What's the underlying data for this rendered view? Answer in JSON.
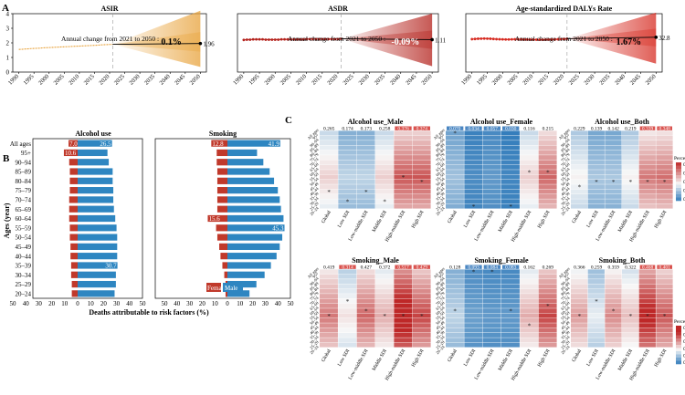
{
  "chart_data": [
    {
      "panel": "A",
      "type": "line",
      "title": "ASIR",
      "x": [
        1990,
        1991,
        1992,
        1993,
        1994,
        1995,
        1996,
        1997,
        1998,
        1999,
        2000,
        2001,
        2002,
        2003,
        2004,
        2005,
        2006,
        2007,
        2008,
        2009,
        2010,
        2011,
        2012,
        2013,
        2014,
        2015,
        2016,
        2017,
        2018,
        2019,
        2020,
        2021
      ],
      "y": [
        1.55,
        1.56,
        1.58,
        1.59,
        1.61,
        1.62,
        1.63,
        1.64,
        1.66,
        1.67,
        1.68,
        1.69,
        1.7,
        1.71,
        1.72,
        1.73,
        1.74,
        1.75,
        1.76,
        1.77,
        1.78,
        1.79,
        1.8,
        1.81,
        1.82,
        1.83,
        1.84,
        1.86,
        1.87,
        1.88,
        1.89,
        1.9
      ],
      "projection": {
        "start": 2021,
        "end": 2050,
        "start_value": 1.9,
        "end_value": 1.96,
        "upper_end": 4.2,
        "lower_end": 0.35
      },
      "annotation": "Annual change from 2021 to 2050 :",
      "change": "0.1%",
      "end_label": "1.96",
      "ylim": [
        0,
        4
      ],
      "yticks": [
        0,
        1,
        2,
        3,
        4
      ],
      "xticks": [
        1990,
        1995,
        2000,
        2005,
        2010,
        2015,
        2020,
        2025,
        2030,
        2035,
        2040,
        2045,
        2050
      ],
      "color": "#e8a23a"
    },
    {
      "panel": "A",
      "type": "line",
      "title": "ASDR",
      "x": [
        1990,
        1991,
        1992,
        1993,
        1994,
        1995,
        1996,
        1997,
        1998,
        1999,
        2000,
        2001,
        2002,
        2003,
        2004,
        2005,
        2006,
        2007,
        2008,
        2009,
        2010,
        2011,
        2012,
        2013,
        2014,
        2015,
        2016,
        2017,
        2018,
        2019,
        2020,
        2021
      ],
      "y": [
        1.1,
        1.11,
        1.11,
        1.12,
        1.12,
        1.12,
        1.12,
        1.11,
        1.11,
        1.11,
        1.11,
        1.11,
        1.12,
        1.12,
        1.12,
        1.12,
        1.12,
        1.12,
        1.12,
        1.12,
        1.13,
        1.13,
        1.13,
        1.13,
        1.13,
        1.13,
        1.13,
        1.13,
        1.13,
        1.13,
        1.13,
        1.14
      ],
      "projection": {
        "start": 2021,
        "end": 2050,
        "start_value": 1.14,
        "end_value": 1.11,
        "upper_end": 2.0,
        "lower_end": 0.2
      },
      "annotation": "Annual change from 2021 to 2050 :",
      "change": "-0.09%",
      "end_label": "1.11",
      "ylim": [
        0,
        2
      ],
      "yticks": [],
      "xticks": [
        1990,
        1995,
        2000,
        2005,
        2010,
        2015,
        2020,
        2025,
        2030,
        2035,
        2040,
        2045,
        2050
      ],
      "color": "#b4221c"
    },
    {
      "panel": "A",
      "type": "line",
      "title": "Age-standardized DALYs Rate",
      "x": [
        1990,
        1991,
        1992,
        1993,
        1994,
        1995,
        1996,
        1997,
        1998,
        1999,
        2000,
        2001,
        2002,
        2003,
        2004,
        2005,
        2006,
        2007,
        2008,
        2009,
        2010,
        2011,
        2012,
        2013,
        2014,
        2015,
        2016,
        2017,
        2018,
        2019,
        2020,
        2021
      ],
      "y": [
        31.0,
        31.2,
        31.4,
        31.5,
        31.6,
        31.5,
        31.4,
        31.2,
        31.0,
        30.9,
        30.8,
        30.7,
        30.7,
        30.8,
        30.9,
        30.9,
        30.8,
        30.7,
        30.7,
        30.6,
        30.6,
        30.5,
        30.5,
        30.5,
        30.6,
        30.6,
        30.7,
        30.8,
        30.9,
        31.0,
        31.2,
        31.4
      ],
      "projection": {
        "start": 2021,
        "end": 2050,
        "start_value": 31.4,
        "end_value": 32.8,
        "upper_end": 56,
        "lower_end": 8
      },
      "annotation": "Annual change from 2021 to 2050 :",
      "change": "1.67%",
      "end_label": "32.8",
      "ylim": [
        0,
        55
      ],
      "yticks": [],
      "xticks": [
        1990,
        1995,
        2000,
        2005,
        2010,
        2015,
        2020,
        2025,
        2030,
        2035,
        2040,
        2045,
        2050
      ],
      "color": "#d62a20"
    },
    {
      "panel": "B",
      "type": "bar",
      "orientation": "horizontal-mirrored",
      "ylabel": "Ages (year)",
      "xlabel": "Deaths attributable to risk factors (%)",
      "categories": [
        "All ages",
        "95+",
        "90–94",
        "85–89",
        "80–84",
        "75–79",
        "70–74",
        "65–69",
        "60–64",
        "55–59",
        "50–54",
        "45–49",
        "40–44",
        "35–39",
        "30–34",
        "25–29",
        "20–24"
      ],
      "xticks_left": [
        50,
        40,
        30,
        20,
        10,
        0
      ],
      "xticks_right": [
        10,
        20,
        30,
        40,
        50
      ],
      "legend": {
        "female": "Female",
        "male": "Male"
      },
      "female_color": "#c0392b",
      "male_color": "#2e86c1",
      "panels": [
        {
          "title": "Alcohol use",
          "female": [
            7.0,
            10.6,
            6.5,
            6.0,
            6.0,
            6.0,
            6.5,
            6.5,
            6.5,
            6.0,
            6.0,
            5.5,
            5.5,
            5.0,
            5.0,
            4.5,
            4.5
          ],
          "male": [
            26.5,
            23.0,
            24.0,
            27.0,
            27.0,
            27.5,
            27.5,
            28.0,
            29.0,
            30.0,
            30.5,
            30.5,
            30.5,
            30.7,
            29.5,
            29.5,
            28.5
          ],
          "labels": [
            {
              "category": "All ages",
              "side": "female",
              "text": "7.0"
            },
            {
              "category": "All ages",
              "side": "male",
              "text": "26.5"
            },
            {
              "category": "95+",
              "side": "female",
              "text": "10.6"
            },
            {
              "category": "35–39",
              "side": "male",
              "text": "30.7"
            }
          ]
        },
        {
          "title": "Smoking",
          "female": [
            12.8,
            8.5,
            8.5,
            8.0,
            8.0,
            8.0,
            8.0,
            8.0,
            15.6,
            9.0,
            8.0,
            6.5,
            5.5,
            4.0,
            2.5,
            1.5,
            1.5
          ],
          "male": [
            41.9,
            23.5,
            28.5,
            33.5,
            37.0,
            40.0,
            41.5,
            42.5,
            44.5,
            45.3,
            43.5,
            41.5,
            39.0,
            34.5,
            29.5,
            23.0,
            17.5
          ],
          "labels": [
            {
              "category": "All ages",
              "side": "female",
              "text": "12.8"
            },
            {
              "category": "All ages",
              "side": "male",
              "text": "41.9"
            },
            {
              "category": "60–64",
              "side": "female",
              "text": "15.6"
            },
            {
              "category": "55–59",
              "side": "male",
              "text": "45.3"
            }
          ]
        }
      ]
    },
    {
      "panel": "C",
      "type": "heatmap",
      "rows": [
        "All ages",
        "95+",
        "90–94",
        "85–89",
        "80–84",
        "75–79",
        "70–74",
        "65–69",
        "60–64",
        "55–59",
        "50–54",
        "45–49",
        "40–44",
        "35–39",
        "30–34",
        "25–29",
        "20–24"
      ],
      "columns": [
        "Global",
        "Low SDI",
        "Low-middle SDI",
        "Middle SDI",
        "High-middle SDI",
        "High SDI"
      ],
      "top_title": "Alcohol use_Both",
      "legend_title": "Percent",
      "legend_top": [
        "0.5",
        "0.4",
        "0.3",
        "0.2",
        "0.1"
      ],
      "legend_bottom": [
        "0.6",
        "0.5",
        "0.4",
        "0.3",
        "0.2",
        "0.1"
      ],
      "heatmaps": [
        {
          "title": "Alcohol use_Male",
          "all_ages": [
            "0.265",
            "0.174",
            "0.173",
            "0.258",
            "0.376",
            "0.374"
          ],
          "base": [
            0.26,
            0.16,
            0.16,
            0.26,
            0.4,
            0.4
          ],
          "stars": [
            [
              13,
              0
            ],
            [
              15,
              1
            ],
            [
              13,
              2
            ],
            [
              15,
              3
            ],
            [
              10,
              4
            ],
            [
              11,
              5
            ]
          ]
        },
        {
          "title": "Alcohol use_Female",
          "all_ages": [
            "0.070",
            "0.034",
            "0.057",
            "0.030",
            "0.116",
            "0.215"
          ],
          "base": [
            0.13,
            0.05,
            0.07,
            0.04,
            0.26,
            0.38
          ],
          "stars": [
            [
              1,
              0
            ],
            [
              16,
              1
            ],
            [
              16,
              3
            ],
            [
              9,
              4
            ],
            [
              9,
              5
            ]
          ]
        },
        {
          "title": "Alcohol use_Both",
          "all_ages": [
            "0.229",
            "0.139",
            "0.142",
            "0.219",
            "0.339",
            "0.348"
          ],
          "base": [
            0.22,
            0.14,
            0.14,
            0.22,
            0.36,
            0.37
          ],
          "stars": [
            [
              12,
              0
            ],
            [
              11,
              1
            ],
            [
              11,
              2
            ],
            [
              11,
              3
            ],
            [
              11,
              4
            ],
            [
              11,
              5
            ]
          ]
        },
        {
          "title": "Smoking_Male",
          "all_ages": [
            "0.419",
            "0.314",
            "0.427",
            "0.372",
            "0.517",
            "0.429"
          ],
          "base": [
            0.36,
            0.24,
            0.38,
            0.3,
            0.52,
            0.42
          ],
          "stars": [
            [
              10,
              0
            ],
            [
              7,
              1
            ],
            [
              9,
              2
            ],
            [
              10,
              3
            ],
            [
              10,
              4
            ],
            [
              10,
              5
            ]
          ]
        },
        {
          "title": "Smoking_Female",
          "all_ages": [
            "0.128",
            "0.093",
            "0.084",
            "0.083",
            "0.162",
            "0.269"
          ],
          "base": [
            0.16,
            0.08,
            0.07,
            0.07,
            0.3,
            0.42
          ],
          "stars": [
            [
              9,
              0
            ],
            [
              1,
              1
            ],
            [
              1,
              2
            ],
            [
              9,
              3
            ],
            [
              12,
              4
            ],
            [
              8,
              5
            ]
          ]
        },
        {
          "title": "Smoking_Both",
          "all_ages": [
            "0.366",
            "0.259",
            "0.359",
            "0.322",
            "0.468",
            "0.401"
          ],
          "base": [
            0.32,
            0.2,
            0.34,
            0.28,
            0.48,
            0.4
          ],
          "stars": [
            [
              10,
              0
            ],
            [
              7,
              1
            ],
            [
              9,
              2
            ],
            [
              10,
              3
            ],
            [
              10,
              4
            ],
            [
              10,
              5
            ]
          ]
        }
      ]
    }
  ],
  "panel_labels": [
    "A",
    "B",
    "C"
  ]
}
